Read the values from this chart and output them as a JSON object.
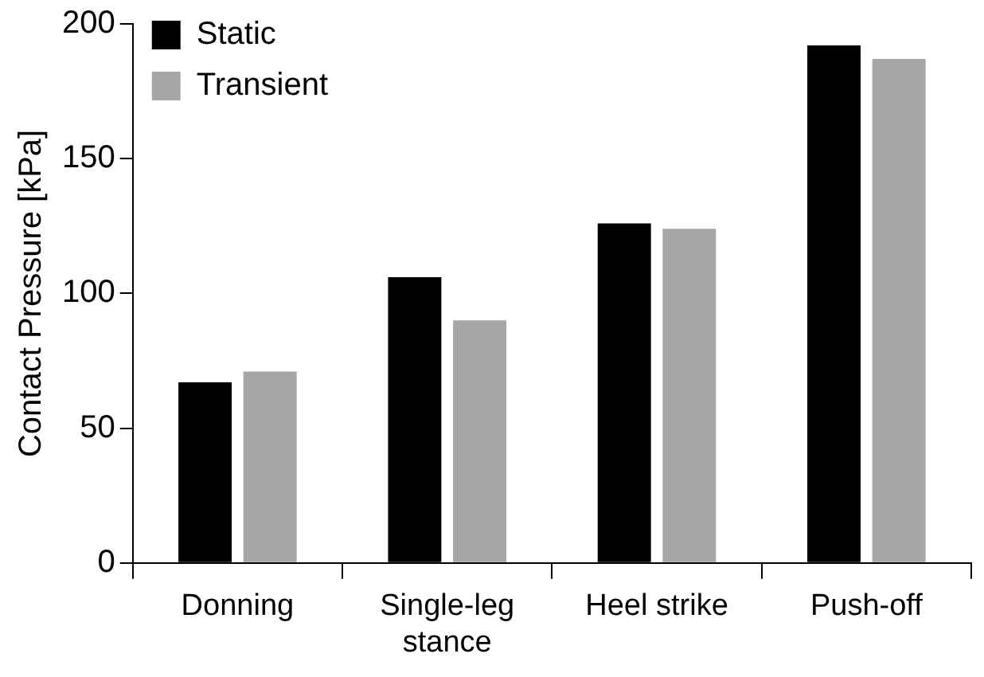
{
  "chart_data": {
    "type": "bar",
    "ylabel": "Contact Pressure [kPa]",
    "categories": [
      "Donning",
      "Single-leg stance",
      "Heel strike",
      "Push-off"
    ],
    "series": [
      {
        "name": "Static",
        "color": "#000000",
        "values": [
          67,
          106,
          126,
          192
        ]
      },
      {
        "name": "Transient",
        "color": "#a6a6a6",
        "values": [
          71,
          90,
          124,
          187
        ]
      }
    ],
    "ylim": [
      0,
      200
    ],
    "yticks": [
      0,
      50,
      100,
      150,
      200
    ],
    "grid": false,
    "legend": "top left"
  }
}
